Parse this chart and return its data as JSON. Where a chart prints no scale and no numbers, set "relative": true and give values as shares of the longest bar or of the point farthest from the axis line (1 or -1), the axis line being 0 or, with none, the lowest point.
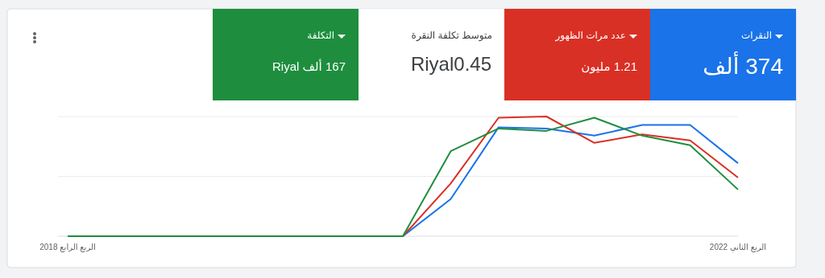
{
  "chart_data": [
    {
      "type": "other",
      "annotations": [
        "النقرات",
        "374 ألف",
        "عدد مرات الظهور",
        "1.21 مليون",
        "متوسط تكلفة النقرة",
        "Riyal0.45",
        "التكلفة",
        "167 ألف Riyal"
      ],
      "colors": [
        "#1a73e8",
        "#d93025",
        "#ffffff",
        "#1e8e3e"
      ]
    },
    {
      "type": "line",
      "relative": true,
      "categories": [
        "الربع الرابع 2018",
        null,
        null,
        null,
        null,
        null,
        null,
        null,
        null,
        null,
        null,
        null,
        null,
        null,
        "الربع الثاني 2022"
      ],
      "ref_lines": [
        {
          "axis": "y",
          "value": 0.5,
          "color": "#e8eaed"
        },
        {
          "axis": "y",
          "value": 1,
          "color": "#e8eaed"
        }
      ],
      "series": [
        {
          "color": "#1a73e8",
          "values": [
            null,
            null,
            null,
            null,
            null,
            null,
            null,
            0,
            0.31,
            0.91,
            0.9,
            0.84,
            0.93,
            0.93,
            0.61
          ]
        },
        {
          "color": "#d93025",
          "values": [
            null,
            null,
            null,
            null,
            null,
            null,
            null,
            0,
            0.44,
            0.99,
            1.0,
            0.78,
            0.85,
            0.8,
            0.49
          ]
        },
        {
          "color": "#1e8e3e",
          "values": [
            0,
            0,
            0,
            0,
            0,
            0,
            0,
            0,
            0.71,
            0.9,
            0.88,
            0.99,
            0.84,
            0.76,
            0.39
          ]
        }
      ]
    }
  ]
}
